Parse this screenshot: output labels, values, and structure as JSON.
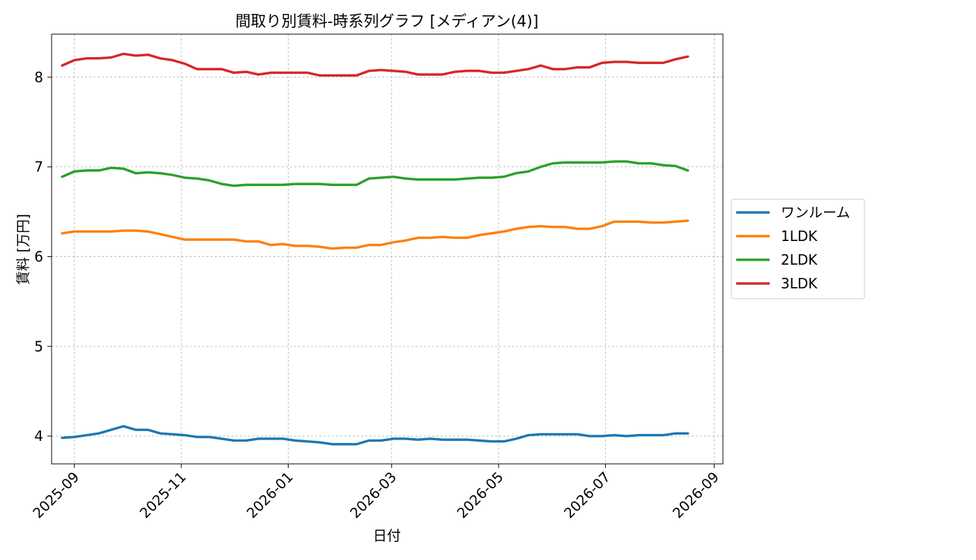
{
  "chart_data": {
    "type": "line",
    "title": "間取り別賃料-時系列グラフ [メディアン(4)]",
    "xlabel": "日付",
    "ylabel": "賃料 [万円]",
    "xlim": [
      "2025-08-19",
      "2026-09-06"
    ],
    "ylim": [
      3.69,
      8.48
    ],
    "x_ticks": [
      "2025-09-01",
      "2025-11-01",
      "2026-01-01",
      "2026-03-01",
      "2026-05-01",
      "2026-07-01",
      "2026-09-01"
    ],
    "x_tick_labels": [
      "2025-09",
      "2025-11",
      "2026-01",
      "2026-03",
      "2026-05",
      "2026-07",
      "2026-09"
    ],
    "y_ticks": [
      4,
      5,
      6,
      7,
      8
    ],
    "y_tick_labels": [
      "4",
      "5",
      "6",
      "7",
      "8"
    ],
    "grid": true,
    "legend_position": "right-outside",
    "x": [
      "2025-08-25",
      "2025-09-01",
      "2025-09-08",
      "2025-09-15",
      "2025-09-22",
      "2025-09-29",
      "2025-10-06",
      "2025-10-13",
      "2025-10-20",
      "2025-10-27",
      "2025-11-03",
      "2025-11-10",
      "2025-11-17",
      "2025-11-24",
      "2025-12-01",
      "2025-12-08",
      "2025-12-15",
      "2025-12-22",
      "2025-12-29",
      "2026-01-05",
      "2026-01-12",
      "2026-01-19",
      "2026-01-26",
      "2026-02-02",
      "2026-02-09",
      "2026-02-16",
      "2026-02-23",
      "2026-03-02",
      "2026-03-09",
      "2026-03-16",
      "2026-03-23",
      "2026-03-30",
      "2026-04-06",
      "2026-04-13",
      "2026-04-20",
      "2026-04-27",
      "2026-05-04",
      "2026-05-11",
      "2026-05-18",
      "2026-05-25",
      "2026-06-01",
      "2026-06-08",
      "2026-06-15",
      "2026-06-22",
      "2026-06-29",
      "2026-07-06",
      "2026-07-13",
      "2026-07-20",
      "2026-07-27",
      "2026-08-03",
      "2026-08-10",
      "2026-08-17"
    ],
    "series": [
      {
        "name": "ワンルーム",
        "color": "#1f77b4",
        "values": [
          3.98,
          3.99,
          4.01,
          4.03,
          4.07,
          4.11,
          4.07,
          4.07,
          4.03,
          4.02,
          4.01,
          3.99,
          3.99,
          3.97,
          3.95,
          3.95,
          3.97,
          3.97,
          3.97,
          3.95,
          3.94,
          3.93,
          3.91,
          3.91,
          3.91,
          3.95,
          3.95,
          3.97,
          3.97,
          3.96,
          3.97,
          3.96,
          3.96,
          3.96,
          3.95,
          3.94,
          3.94,
          3.97,
          4.01,
          4.02,
          4.02,
          4.02,
          4.02,
          4.0,
          4.0,
          4.01,
          4.0,
          4.01,
          4.01,
          4.01,
          4.03,
          4.03
        ]
      },
      {
        "name": "1LDK",
        "color": "#ff7f0e",
        "values": [
          6.26,
          6.28,
          6.28,
          6.28,
          6.28,
          6.29,
          6.29,
          6.28,
          6.25,
          6.22,
          6.19,
          6.19,
          6.19,
          6.19,
          6.19,
          6.17,
          6.17,
          6.13,
          6.14,
          6.12,
          6.12,
          6.11,
          6.09,
          6.1,
          6.1,
          6.13,
          6.13,
          6.16,
          6.18,
          6.21,
          6.21,
          6.22,
          6.21,
          6.21,
          6.24,
          6.26,
          6.28,
          6.31,
          6.33,
          6.34,
          6.33,
          6.33,
          6.31,
          6.31,
          6.34,
          6.39,
          6.39,
          6.39,
          6.38,
          6.38,
          6.39,
          6.4
        ]
      },
      {
        "name": "2LDK",
        "color": "#2ca02c",
        "values": [
          6.89,
          6.95,
          6.96,
          6.96,
          6.99,
          6.98,
          6.93,
          6.94,
          6.93,
          6.91,
          6.88,
          6.87,
          6.85,
          6.81,
          6.79,
          6.8,
          6.8,
          6.8,
          6.8,
          6.81,
          6.81,
          6.81,
          6.8,
          6.8,
          6.8,
          6.87,
          6.88,
          6.89,
          6.87,
          6.86,
          6.86,
          6.86,
          6.86,
          6.87,
          6.88,
          6.88,
          6.89,
          6.93,
          6.95,
          7.0,
          7.04,
          7.05,
          7.05,
          7.05,
          7.05,
          7.06,
          7.06,
          7.04,
          7.04,
          7.02,
          7.01,
          6.96
        ]
      },
      {
        "name": "3LDK",
        "color": "#d62728",
        "values": [
          8.13,
          8.19,
          8.21,
          8.21,
          8.22,
          8.26,
          8.24,
          8.25,
          8.21,
          8.19,
          8.15,
          8.09,
          8.09,
          8.09,
          8.05,
          8.06,
          8.03,
          8.05,
          8.05,
          8.05,
          8.05,
          8.02,
          8.02,
          8.02,
          8.02,
          8.07,
          8.08,
          8.07,
          8.06,
          8.03,
          8.03,
          8.03,
          8.06,
          8.07,
          8.07,
          8.05,
          8.05,
          8.07,
          8.09,
          8.13,
          8.09,
          8.09,
          8.11,
          8.11,
          8.16,
          8.17,
          8.17,
          8.16,
          8.16,
          8.16,
          8.2,
          8.23
        ]
      }
    ]
  }
}
